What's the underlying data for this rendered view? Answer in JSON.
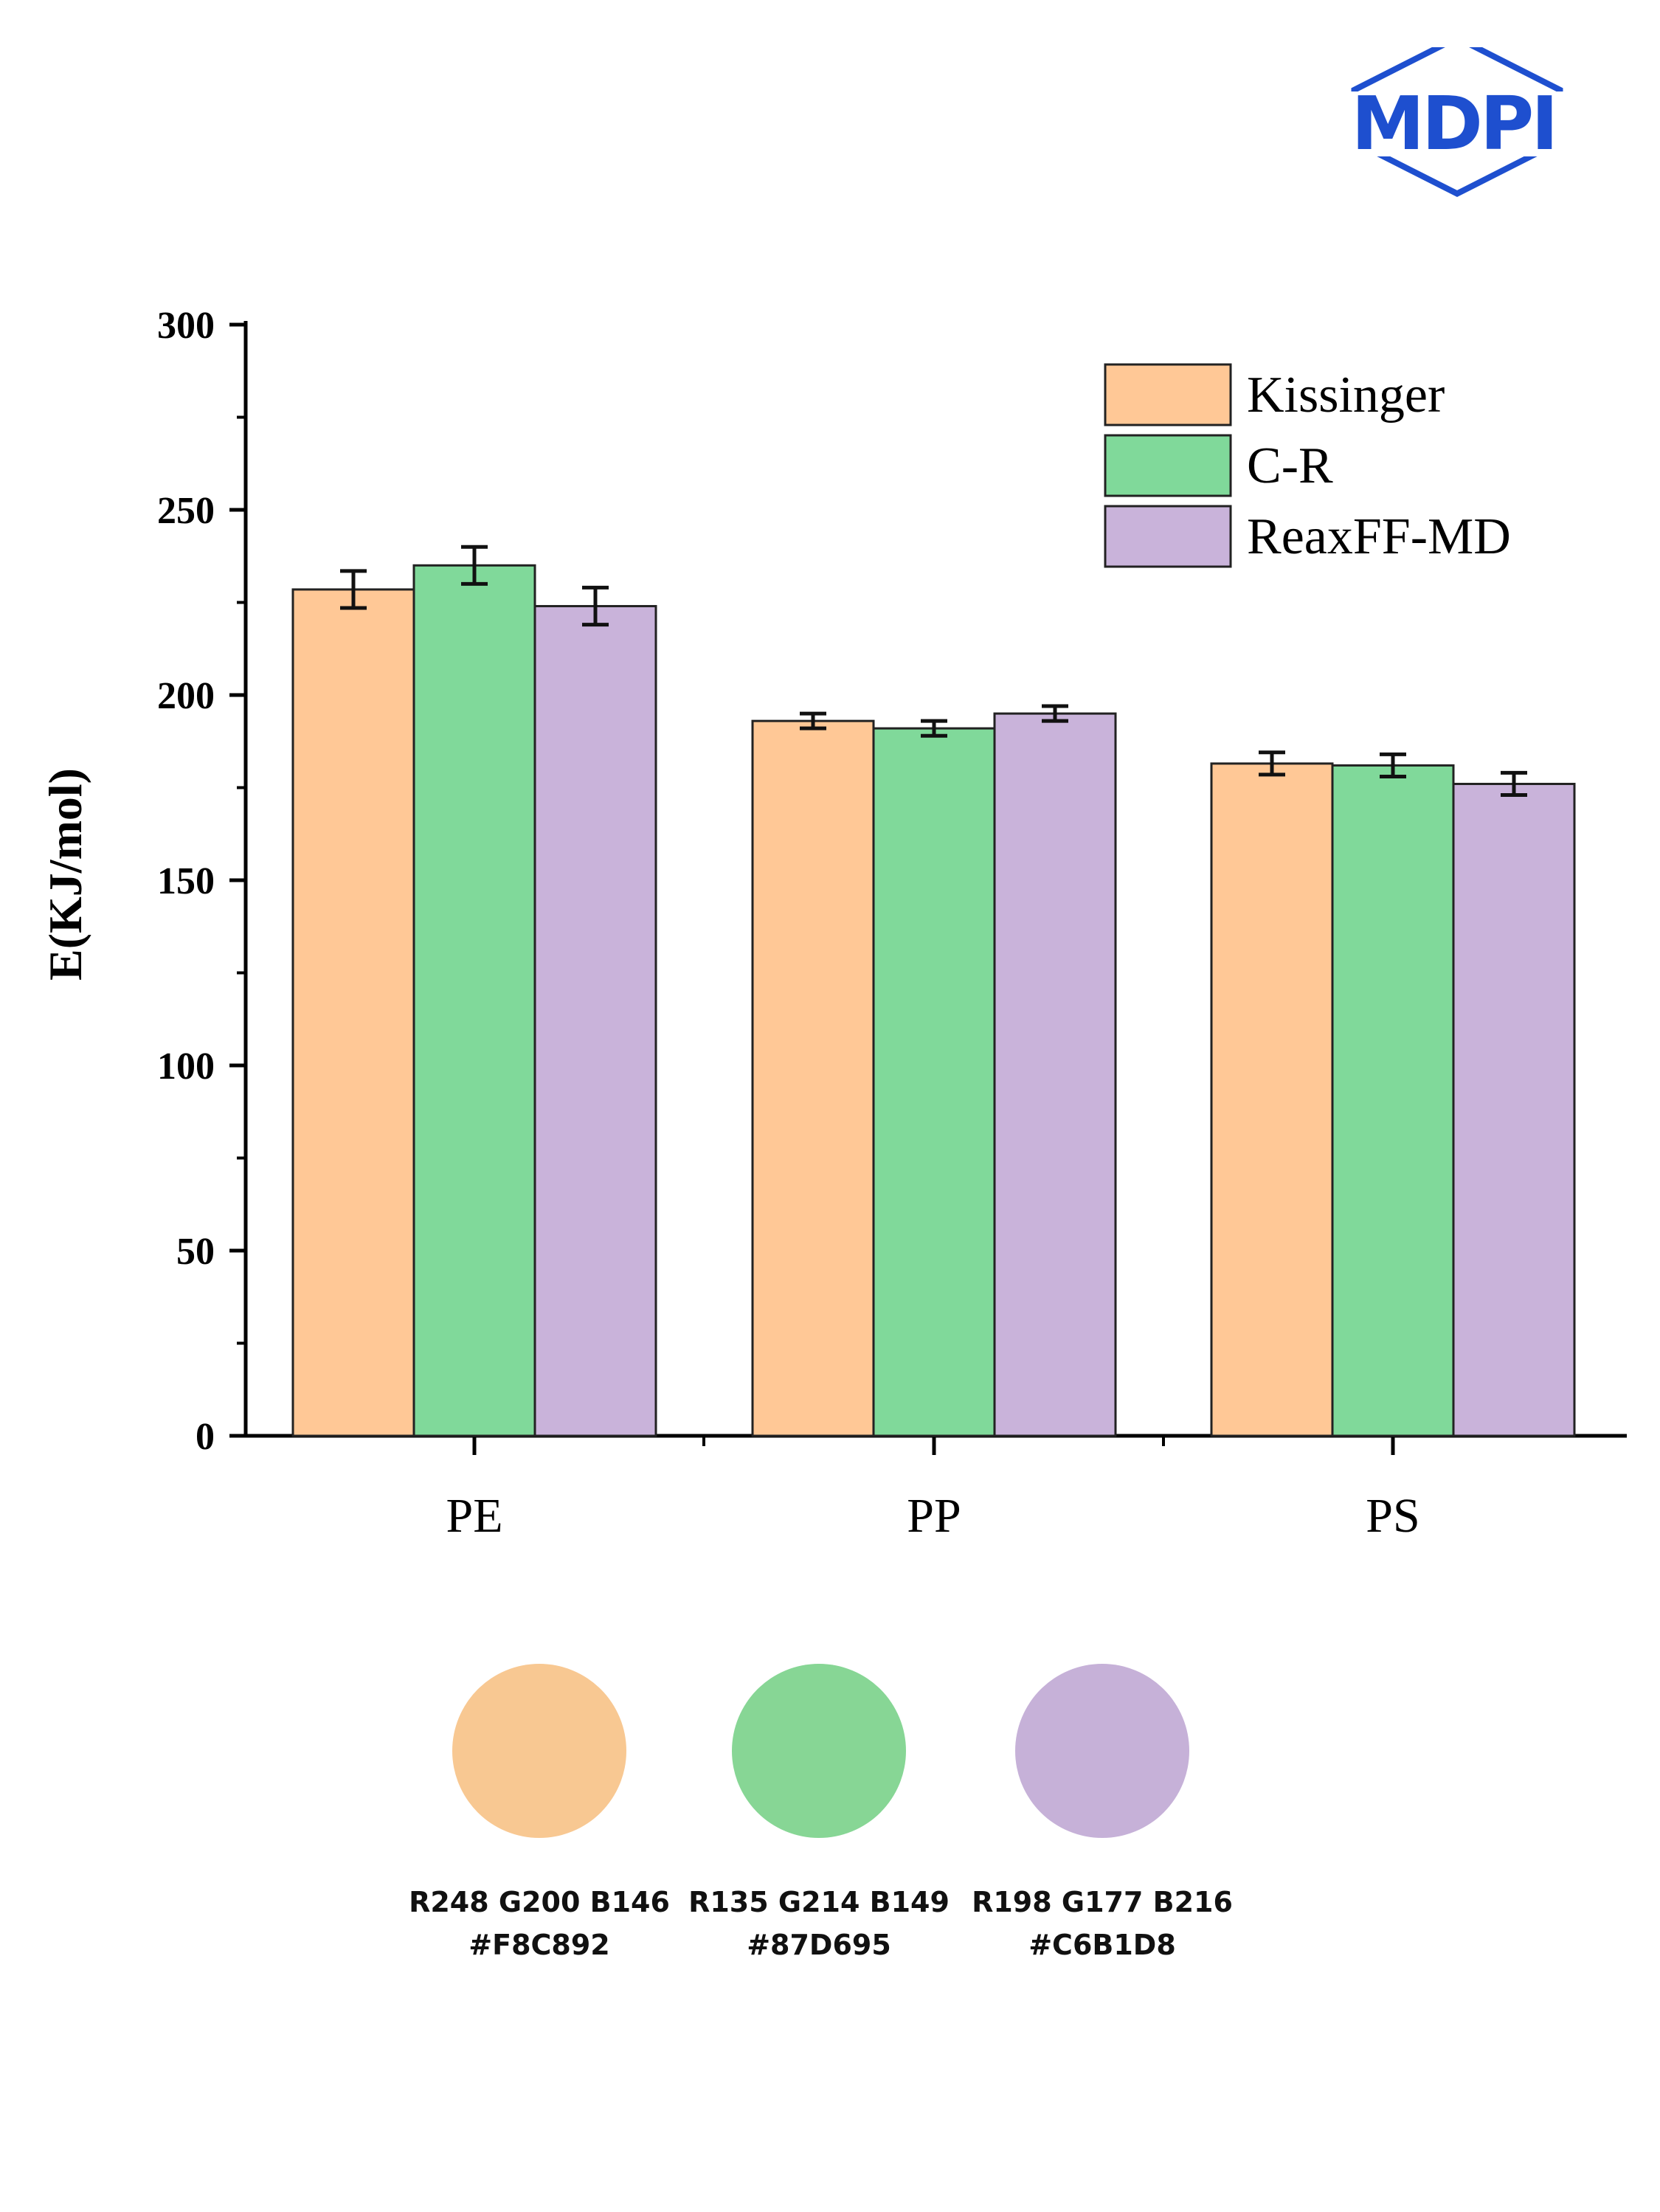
{
  "publisher": {
    "name": "MDPI",
    "color": "#1E4FCF"
  },
  "chart_data": {
    "type": "bar",
    "title": "",
    "xlabel": "",
    "ylabel": "E(KJ/mol)",
    "ylim": [
      0,
      300
    ],
    "yticks": [
      0,
      50,
      100,
      150,
      200,
      250,
      300
    ],
    "ytick_labels": [
      "0",
      "50",
      "100",
      "150",
      "200",
      "250",
      "300"
    ],
    "minor_tick_step": 25,
    "categories": [
      "PE",
      "PP",
      "PS"
    ],
    "legend_position": "top-right",
    "grid": false,
    "series": [
      {
        "name": "Kissinger",
        "color": "#FFC896",
        "values": [
          228.5,
          193.0,
          181.5
        ],
        "errors": [
          5.0,
          2.0,
          3.0
        ]
      },
      {
        "name": "C-R",
        "color": "#80D99A",
        "values": [
          235.0,
          191.0,
          181.0
        ],
        "errors": [
          5.0,
          2.0,
          3.0
        ]
      },
      {
        "name": "ReaxFF-MD",
        "color": "#C9B3DA",
        "values": [
          224.0,
          195.0,
          176.0
        ],
        "errors": [
          5.0,
          2.0,
          3.0
        ]
      }
    ]
  },
  "palette": [
    {
      "rgb": "R248 G200 B146",
      "hex": "#F8C892"
    },
    {
      "rgb": "R135 G214 B149",
      "hex": "#87D695"
    },
    {
      "rgb": "R198 G177 B216",
      "hex": "#C6B1D8"
    }
  ]
}
